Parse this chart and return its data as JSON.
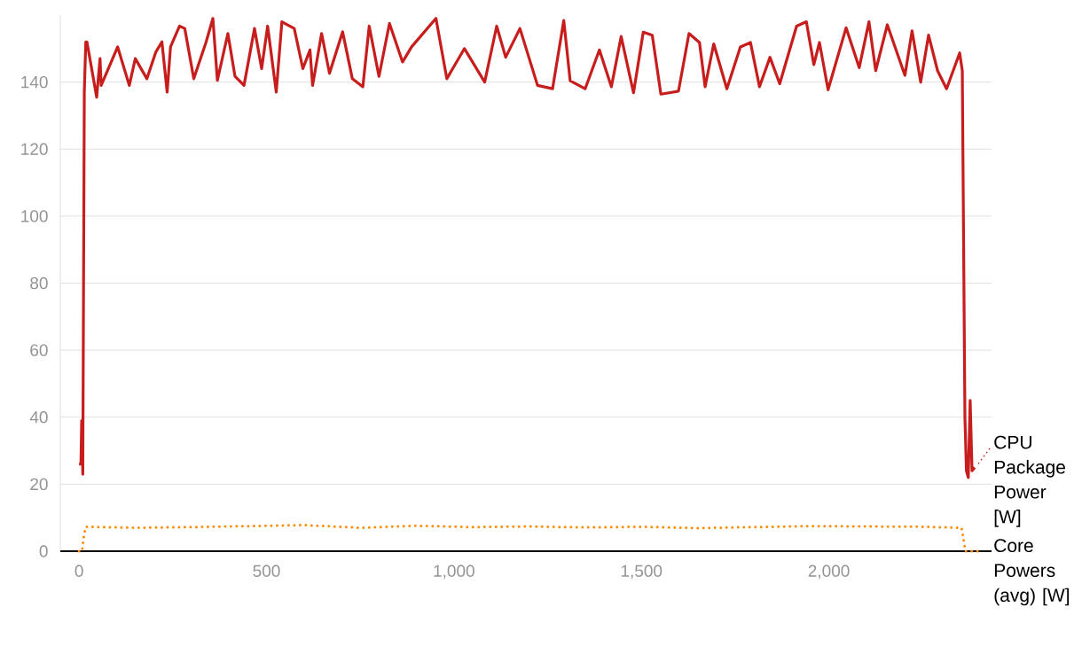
{
  "chart_data": {
    "type": "line",
    "grid": "y",
    "marker": "none",
    "xlim": [
      -50,
      2434
    ],
    "ylim": [
      0,
      160
    ],
    "xticks": [
      0,
      500,
      {
        "value": 1000,
        "label": "1,000"
      },
      {
        "value": 1500,
        "label": "1,500"
      },
      {
        "value": 2000,
        "label": "2,000"
      }
    ],
    "yticks": [
      0,
      20,
      40,
      60,
      80,
      100,
      120,
      140
    ],
    "series": [
      {
        "name": "CPU Package Power [W]",
        "color": "#c71e1d",
        "line_style": "solid",
        "x": [
          0,
          5,
          7,
          10,
          14,
          18,
          21,
          47,
          56,
          59,
          103,
          134,
          150,
          181,
          205,
          221,
          235,
          244,
          268,
          282,
          306,
          339,
          357,
          369,
          397,
          416,
          440,
          468,
          487,
          503,
          526,
          541,
          574,
          597,
          616,
          623,
          647,
          668,
          703,
          729,
          757,
          774,
          800,
          828,
          863,
          887,
          952,
          981,
          1028,
          1082,
          1114,
          1138,
          1176,
          1223,
          1263,
          1293,
          1310,
          1350,
          1388,
          1420,
          1446,
          1479,
          1505,
          1529,
          1552,
          1599,
          1627,
          1655,
          1670,
          1693,
          1728,
          1764,
          1791,
          1815,
          1843,
          1869,
          1914,
          1940,
          1960,
          1975,
          1998,
          2046,
          2081,
          2107,
          2125,
          2156,
          2203,
          2222,
          2245,
          2266,
          2290,
          2314,
          2349,
          2356,
          2363,
          2367,
          2372,
          2377,
          2382,
          2389
        ],
        "values": [
          26,
          26,
          39,
          23,
          137,
          152,
          152,
          135.5,
          147,
          139,
          150.5,
          139,
          147,
          141,
          149,
          152,
          137,
          150.5,
          156.7,
          156,
          141,
          152,
          159,
          140.5,
          154.5,
          141.7,
          139,
          156,
          144,
          156.7,
          137,
          158,
          156,
          144,
          149.6,
          139,
          154.5,
          142.6,
          155,
          141,
          138.6,
          156.7,
          141.7,
          157.5,
          146,
          150.5,
          159,
          141,
          150,
          140,
          156.7,
          147.4,
          156,
          139,
          138,
          158.4,
          140.4,
          138,
          149.6,
          138.6,
          153.6,
          136.8,
          154.9,
          154,
          136.4,
          137.3,
          154.5,
          151.8,
          138.6,
          151.4,
          138,
          150.5,
          151.8,
          138.6,
          147.4,
          139.5,
          156.7,
          158,
          145.2,
          151.8,
          137.7,
          156.2,
          144.3,
          158,
          143.4,
          157.1,
          142,
          155.3,
          140,
          154,
          143.4,
          138,
          148.7,
          143.4,
          40,
          24,
          22,
          45,
          24,
          25
        ]
      },
      {
        "name": "Core Powers (avg) [W]",
        "color": "#fa8c00",
        "line_style": "dotted",
        "x": [
          0,
          8,
          12,
          18,
          150,
          300,
          450,
          600,
          750,
          900,
          1050,
          1200,
          1350,
          1500,
          1650,
          1800,
          1950,
          2100,
          2250,
          2354,
          2360,
          2364,
          2410
        ],
        "values": [
          0,
          0,
          4,
          7.3,
          7,
          7.2,
          7.5,
          7.8,
          7,
          7.6,
          7.2,
          7.4,
          7.1,
          7.3,
          6.9,
          7.2,
          7.5,
          7.4,
          7.3,
          7,
          3,
          0,
          0
        ]
      }
    ]
  }
}
